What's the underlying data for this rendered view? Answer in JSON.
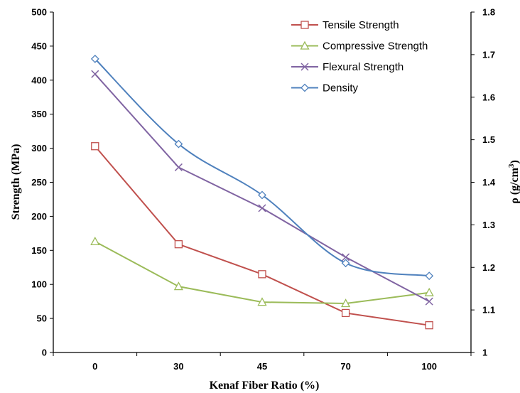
{
  "chart_data": {
    "type": "line",
    "categories": [
      "0",
      "30",
      "45",
      "70",
      "100"
    ],
    "xlabel": "Kenaf Fiber Ratio (%)",
    "ylabel": "Strength (MPa)",
    "y2label": {
      "main": "ρ (g/cm",
      "sup": "3",
      "end": ")"
    },
    "ylim": [
      0,
      500
    ],
    "y2lim": [
      1,
      1.8
    ],
    "yticks": [
      0,
      50,
      100,
      150,
      200,
      250,
      300,
      350,
      400,
      450,
      500
    ],
    "y2ticks": [
      1,
      1.1,
      1.2,
      1.3,
      1.4,
      1.5,
      1.6,
      1.7,
      1.8
    ],
    "y2tick_labels": [
      "1",
      "1.1",
      "1.2",
      "1.3",
      "1.4",
      "1.5",
      "1.6",
      "1.7",
      "1.8"
    ],
    "grid": false,
    "legend_position": "top-right",
    "series": [
      {
        "name": "Tensile Strength",
        "axis": "left",
        "marker": "square",
        "color": "#C0504D",
        "values": [
          303,
          159,
          115,
          58,
          40
        ]
      },
      {
        "name": "Compressive Strength",
        "axis": "left",
        "marker": "triangle",
        "color": "#9BBB59",
        "values": [
          163,
          97,
          74,
          72,
          88
        ]
      },
      {
        "name": "Flexural Strength",
        "axis": "left",
        "marker": "x",
        "color": "#8064A2",
        "values": [
          409,
          272,
          212,
          140,
          75
        ]
      },
      {
        "name": "Density",
        "axis": "right",
        "marker": "diamond",
        "color": "#4F81BD",
        "values": [
          1.69,
          1.49,
          1.37,
          1.21,
          1.18
        ]
      }
    ]
  }
}
